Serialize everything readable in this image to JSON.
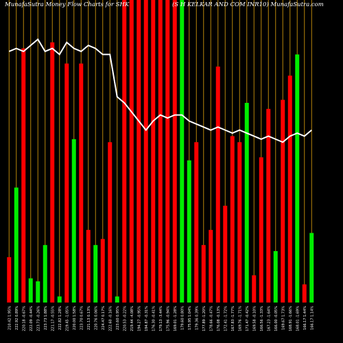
{
  "header": {
    "left": "MunafaSutra  Money Flow  Charts for SHK",
    "right": "(S H KELKAR AND COM INR10) MunafaSutra.com"
  },
  "chart_data": {
    "type": "bar",
    "title": "MunafaSutra  Money Flow  Charts for SHK",
    "subtitle": "(S H KELKAR AND COM INR10) MunafaSutra.com",
    "ylim": [
      0,
      100
    ],
    "grid": false,
    "colors": {
      "up": "#00ee00",
      "down": "#ff0000",
      "divider": "#b8860b",
      "line": "#ffffff"
    },
    "categories": [
      "210.42 1.95%",
      "222.92 0.89%",
      "220.18 -0.67%",
      "222.09 -0.44%",
      "223.73 -0.26%",
      "223.73 1.88%",
      "221.17 -0.55%",
      "222.82 1.28%",
      "219.45 -1.05%",
      "220.00 1.58%",
      "223.70 0.67%",
      "221.13 0.13%",
      "220.76 0.06%",
      "224.47 0.17%",
      "222.60 -0.16%",
      "223.60 0.95%",
      "220.53 -0.22%",
      "219.44 -4.08%",
      "194.27 -0.95%",
      "194.87 -0.31%",
      "176.30 -0.41%",
      "179.13 -3.44%",
      "175.96 -0.94%",
      "169.01 -1.28%",
      "179.60 0.80%",
      "175.95 1.04%",
      "179.36 0.39%",
      "177.89 -1.20%",
      "178.66 -0.47%",
      "176.08 -0.13%",
      "172.41 -1.72%",
      "167.83 -1.77%",
      "169.76 -1.71%",
      "171.47 -0.42%",
      "169.58 -0.10%",
      "166.56 -1.33%",
      "167.23 -1.64%",
      "166.00 -0.05%",
      "169.67 1.73%",
      "168.91 -1.66%",
      "168.01 -1.69%",
      "166.17 1.44%",
      "166.17 1.14%"
    ],
    "series": [
      {
        "values": [
          15,
          38,
          84,
          8,
          7,
          19,
          86,
          2,
          79,
          54,
          79,
          24,
          19,
          21,
          53,
          2,
          100,
          100,
          100,
          100,
          100,
          100,
          100,
          100,
          100,
          47,
          53,
          19,
          24,
          78,
          32,
          55,
          53,
          66,
          9,
          48,
          64,
          17,
          67,
          75,
          82,
          6,
          23
        ],
        "directions": [
          "down",
          "up",
          "down",
          "up",
          "up",
          "up",
          "down",
          "up",
          "down",
          "up",
          "down",
          "down",
          "up",
          "down",
          "down",
          "up",
          "down",
          "down",
          "down",
          "down",
          "down",
          "down",
          "down",
          "down",
          "up",
          "up",
          "down",
          "down",
          "down",
          "down",
          "down",
          "down",
          "down",
          "up",
          "down",
          "down",
          "down",
          "up",
          "down",
          "down",
          "up",
          "down",
          "up"
        ]
      },
      {
        "values": [
          83,
          84,
          83,
          85,
          87,
          83,
          84,
          82,
          86,
          84,
          83,
          85,
          84,
          82,
          82,
          68,
          66,
          63,
          60,
          57,
          60,
          62,
          61,
          62,
          62,
          60,
          59,
          58,
          57,
          58,
          57,
          56,
          57,
          56,
          55,
          54,
          55,
          54,
          53,
          55,
          56,
          55,
          57
        ]
      }
    ]
  }
}
